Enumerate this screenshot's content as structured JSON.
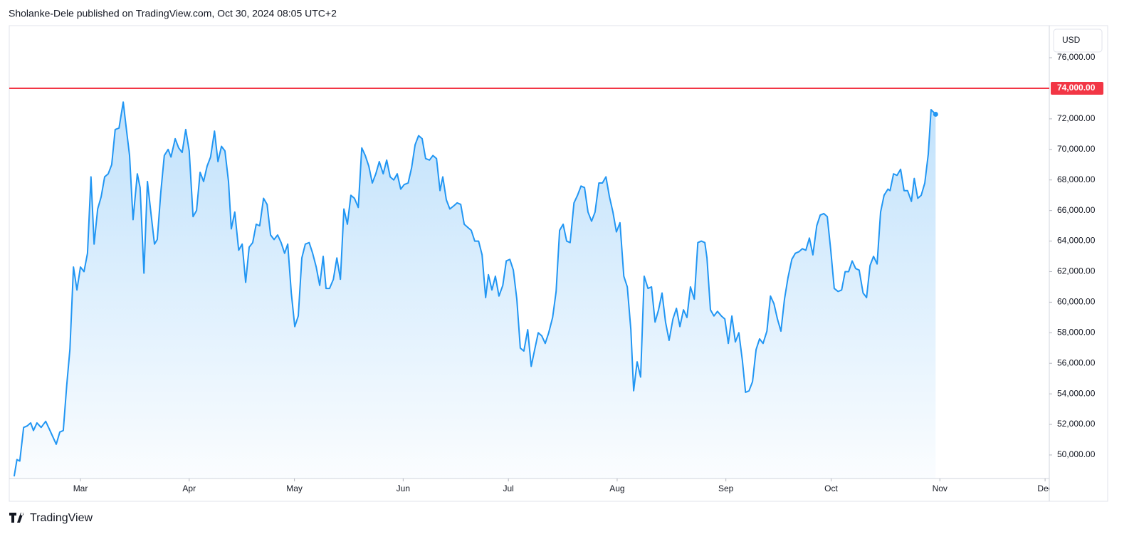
{
  "header": {
    "text": "Sholanke-Dele published on TradingView.com, Oct 30, 2024 08:05 UTC+2"
  },
  "footer": {
    "brand": "TradingView"
  },
  "chart_data": {
    "type": "area",
    "currency": "USD",
    "color": "#2196f3",
    "grid": false,
    "xlim": [
      39.7,
      336.2
    ],
    "xticks": [
      {
        "value": 60,
        "label": "Mar"
      },
      {
        "value": 91,
        "label": "Apr"
      },
      {
        "value": 121,
        "label": "May"
      },
      {
        "value": 152,
        "label": "Jun"
      },
      {
        "value": 182,
        "label": "Jul"
      },
      {
        "value": 213,
        "label": "Aug"
      },
      {
        "value": 244,
        "label": "Sep"
      },
      {
        "value": 274,
        "label": "Oct"
      },
      {
        "value": 305,
        "label": "Nov"
      },
      {
        "value": 335,
        "label": "Dec"
      }
    ],
    "ylim": [
      48460,
      78100
    ],
    "yticks": [
      {
        "value": 50000,
        "label": "50,000.00"
      },
      {
        "value": 52000,
        "label": "52,000.00"
      },
      {
        "value": 54000,
        "label": "54,000.00"
      },
      {
        "value": 56000,
        "label": "56,000.00"
      },
      {
        "value": 58000,
        "label": "58,000.00"
      },
      {
        "value": 60000,
        "label": "60,000.00"
      },
      {
        "value": 62000,
        "label": "62,000.00"
      },
      {
        "value": 64000,
        "label": "64,000.00"
      },
      {
        "value": 66000,
        "label": "66,000.00"
      },
      {
        "value": 68000,
        "label": "68,000.00"
      },
      {
        "value": 70000,
        "label": "70,000.00"
      },
      {
        "value": 72000,
        "label": "72,000.00"
      },
      {
        "value": 76000,
        "label": "76,000.00"
      }
    ],
    "hline": {
      "value": 74000,
      "label": "74,000.00",
      "color": "#f23645"
    },
    "x": [
      41.1,
      41.9,
      42.7,
      43.8,
      44.8,
      45.8,
      46.6,
      47.6,
      48.8,
      50.1,
      51.3,
      53.1,
      54.1,
      55.1,
      56.1,
      57.0,
      58.0,
      59.0,
      60.0,
      61.0,
      62.0,
      63.0,
      63.9,
      64.9,
      65.9,
      66.9,
      67.9,
      68.9,
      69.9,
      71.0,
      72.2,
      73.0,
      74.0,
      75.0,
      76.2,
      77.0,
      78.1,
      79.1,
      80.1,
      81.1,
      81.9,
      82.9,
      83.9,
      85.0,
      85.8,
      87.0,
      88.0,
      89.0,
      90.0,
      91.0,
      92.1,
      93.1,
      94.1,
      95.1,
      96.1,
      97.1,
      98.2,
      99.2,
      100.2,
      101.2,
      102.2,
      103.0,
      104.0,
      105.1,
      106.1,
      107.1,
      108.1,
      109.1,
      110.1,
      111.1,
      112.2,
      113.2,
      114.2,
      115.2,
      116.2,
      117.2,
      118.2,
      119.1,
      120.1,
      121.1,
      122.1,
      123.1,
      124.1,
      125.2,
      126.2,
      127.2,
      128.2,
      129.2,
      130.0,
      131.0,
      132.1,
      133.1,
      134.1,
      135.1,
      136.1,
      137.1,
      138.1,
      139.2,
      140.2,
      141.2,
      142.2,
      143.2,
      144.2,
      145.2,
      146.3,
      147.3,
      148.3,
      149.3,
      150.3,
      151.3,
      152.3,
      153.4,
      154.4,
      155.4,
      156.4,
      157.4,
      158.4,
      159.5,
      160.5,
      161.5,
      162.5,
      163.3,
      164.3,
      165.3,
      166.4,
      167.4,
      168.4,
      169.4,
      170.4,
      171.4,
      172.4,
      173.5,
      174.5,
      175.5,
      176.3,
      177.3,
      178.3,
      179.3,
      180.4,
      181.4,
      182.4,
      183.4,
      184.4,
      185.4,
      186.4,
      187.5,
      188.5,
      189.5,
      190.5,
      191.5,
      192.5,
      193.5,
      194.6,
      195.6,
      196.6,
      197.6,
      198.6,
      199.6,
      200.7,
      201.7,
      202.7,
      203.7,
      204.7,
      205.7,
      206.7,
      207.8,
      208.8,
      209.8,
      210.8,
      211.8,
      212.8,
      213.8,
      214.9,
      215.9,
      216.9,
      217.7,
      218.7,
      219.7,
      220.7,
      221.8,
      222.8,
      223.8,
      224.8,
      225.8,
      226.8,
      227.8,
      228.9,
      229.9,
      230.9,
      231.9,
      232.9,
      233.9,
      235.0,
      236.0,
      237.0,
      238.0,
      238.6,
      239.6,
      240.6,
      241.6,
      242.7,
      243.7,
      244.7,
      245.7,
      246.7,
      247.7,
      248.7,
      249.6,
      250.6,
      251.6,
      252.6,
      253.6,
      254.6,
      255.7,
      256.7,
      257.7,
      258.7,
      259.7,
      260.7,
      261.7,
      262.8,
      263.8,
      264.8,
      265.8,
      266.8,
      267.8,
      268.8,
      269.9,
      270.9,
      271.9,
      272.9,
      273.9,
      274.9,
      276.0,
      277.0,
      278.0,
      279.0,
      280.0,
      281.0,
      282.0,
      283.1,
      284.1,
      285.1,
      286.1,
      287.1,
      288.1,
      289.1,
      290.2,
      290.8,
      291.8,
      292.8,
      293.8,
      294.8,
      295.8,
      296.9,
      297.7,
      298.7,
      299.7,
      300.7,
      301.7,
      302.5,
      303.8
    ],
    "values": [
      48600,
      49700,
      49600,
      51800,
      51900,
      52100,
      51600,
      52100,
      51800,
      52200,
      51600,
      50700,
      51500,
      51600,
      54600,
      56900,
      62300,
      60800,
      62300,
      62000,
      63200,
      68200,
      63800,
      66100,
      66900,
      68200,
      68400,
      69000,
      71300,
      71400,
      73100,
      71500,
      69600,
      65400,
      68400,
      67500,
      61900,
      67900,
      65800,
      63800,
      64100,
      67200,
      69600,
      70000,
      69500,
      70700,
      70100,
      69800,
      71300,
      69900,
      65600,
      66000,
      68500,
      67900,
      68900,
      69500,
      71200,
      69200,
      70200,
      69900,
      67900,
      64800,
      65900,
      63400,
      63800,
      61300,
      63600,
      63900,
      65100,
      65000,
      66800,
      66400,
      64400,
      64100,
      64400,
      63900,
      63200,
      63800,
      60600,
      58400,
      59100,
      62900,
      63800,
      63900,
      63200,
      62300,
      61100,
      63000,
      60900,
      60900,
      61500,
      62900,
      61500,
      66100,
      65100,
      67000,
      66800,
      66200,
      70100,
      69600,
      68900,
      67800,
      68400,
      69200,
      68400,
      69300,
      68200,
      68000,
      68400,
      67400,
      67700,
      67800,
      68800,
      70300,
      70900,
      70700,
      69400,
      69300,
      69600,
      69400,
      67300,
      68200,
      66700,
      66100,
      66300,
      66500,
      66400,
      65100,
      64900,
      64700,
      64000,
      64000,
      63100,
      60300,
      61800,
      60800,
      61700,
      60400,
      61100,
      62700,
      62800,
      62100,
      60200,
      57000,
      56800,
      58200,
      55800,
      56900,
      58000,
      57800,
      57300,
      58000,
      59000,
      60700,
      64700,
      65100,
      64000,
      63900,
      66500,
      67000,
      67600,
      67500,
      65900,
      65300,
      65900,
      67800,
      67800,
      68200,
      66900,
      65900,
      64600,
      65200,
      61700,
      61000,
      58200,
      54200,
      56100,
      55100,
      61700,
      60900,
      61000,
      58700,
      59500,
      60600,
      58700,
      57500,
      58900,
      59600,
      58400,
      59500,
      59000,
      61000,
      60200,
      63900,
      64000,
      63900,
      62900,
      59500,
      59100,
      59400,
      59100,
      58900,
      57300,
      59100,
      57400,
      58000,
      56200,
      54100,
      54200,
      54800,
      56900,
      57600,
      57300,
      58100,
      60400,
      59900,
      58900,
      58100,
      60200,
      61600,
      62800,
      63200,
      63300,
      63500,
      63400,
      64200,
      63100,
      65000,
      65700,
      65800,
      65600,
      63400,
      60900,
      60700,
      60800,
      62000,
      62000,
      62700,
      62200,
      62100,
      60600,
      60300,
      62400,
      63000,
      62500,
      65900,
      67000,
      67400,
      67300,
      68400,
      68300,
      68700,
      67300,
      67300,
      66600,
      68100,
      66800,
      67000,
      67800,
      69700,
      72600,
      72300
    ]
  }
}
